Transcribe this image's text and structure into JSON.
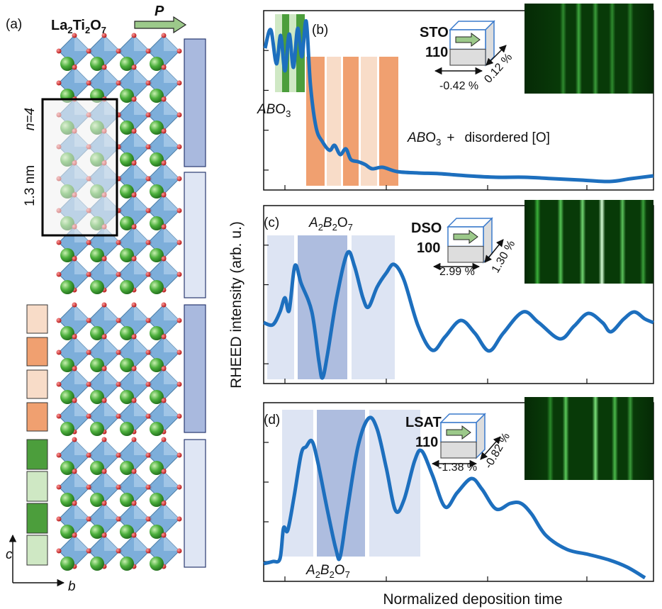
{
  "panel_a": {
    "label": "(a)",
    "formula": [
      "La",
      "2",
      "Ti",
      "2",
      "O",
      "7"
    ],
    "polarization": "P",
    "n_label": "n=4",
    "thickness": "1.3 nm",
    "axis_c": "c",
    "axis_b": "b"
  },
  "panel_b": {
    "label": "(b)",
    "substrate": "STO",
    "orientation": "110",
    "strain_x": "-0.42 %",
    "strain_y": "0.12 %",
    "phase1": [
      "AB",
      "O",
      "3"
    ],
    "phase2": [
      "AB",
      "O",
      "3",
      "+",
      "disordered [O]"
    ]
  },
  "panel_c": {
    "label": "(c)",
    "substrate": "DSO",
    "orientation": "100",
    "strain_x": "2.99 %",
    "strain_y": "1.30 %",
    "phase": [
      "A",
      "2",
      "B",
      "2",
      "O",
      "7"
    ]
  },
  "panel_d": {
    "label": "(d)",
    "substrate": "LSAT",
    "orientation": "110",
    "strain_x": "-1.38 %",
    "strain_y": "-0.82 %",
    "phase": [
      "A",
      "2",
      "B",
      "2",
      "O",
      "7"
    ]
  },
  "y_axis_label": "RHEED intensity (arb. u.)",
  "x_axis_label": "Normalized deposition time"
}
